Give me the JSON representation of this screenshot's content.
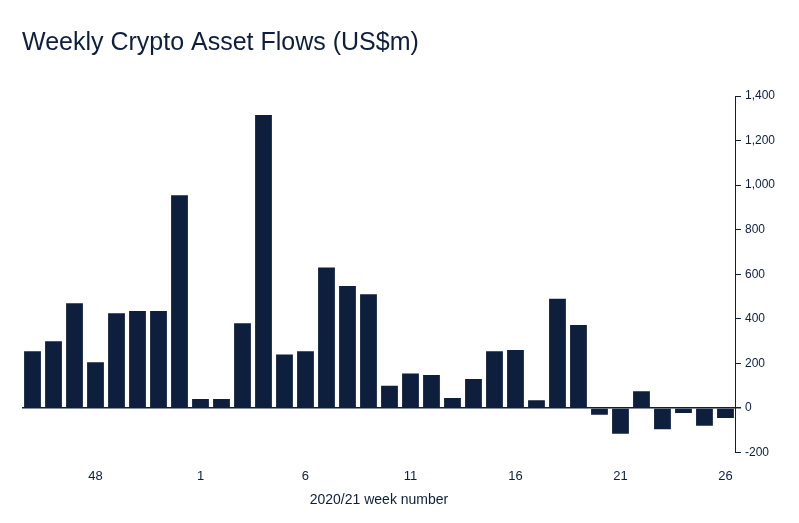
{
  "chart_data": {
    "type": "bar",
    "title": "Weekly Crypto Asset Flows (US$m)",
    "x_label": "2020/21 week number",
    "categories": [
      null,
      null,
      null,
      "48",
      null,
      null,
      null,
      null,
      "1",
      null,
      null,
      null,
      null,
      "6",
      null,
      null,
      null,
      null,
      "11",
      null,
      null,
      null,
      null,
      "16",
      null,
      null,
      null,
      null,
      "21",
      null,
      null,
      null,
      null,
      "26"
    ],
    "values": [
      255,
      300,
      470,
      205,
      425,
      435,
      435,
      955,
      40,
      40,
      380,
      1315,
      240,
      255,
      630,
      548,
      510,
      100,
      155,
      148,
      45,
      130,
      255,
      260,
      35,
      490,
      373,
      -30,
      -115,
      75,
      -95,
      -22,
      -80,
      -45
    ],
    "color": "#0d1f3c",
    "ylim": [
      -200,
      1400
    ],
    "yticks": [
      -200,
      0,
      200,
      400,
      600,
      800,
      {
        "value": 1000,
        "label": "1,000"
      },
      {
        "value": 1200,
        "label": "1,200"
      },
      {
        "value": 1400,
        "label": "1,400"
      }
    ],
    "grid": false
  }
}
